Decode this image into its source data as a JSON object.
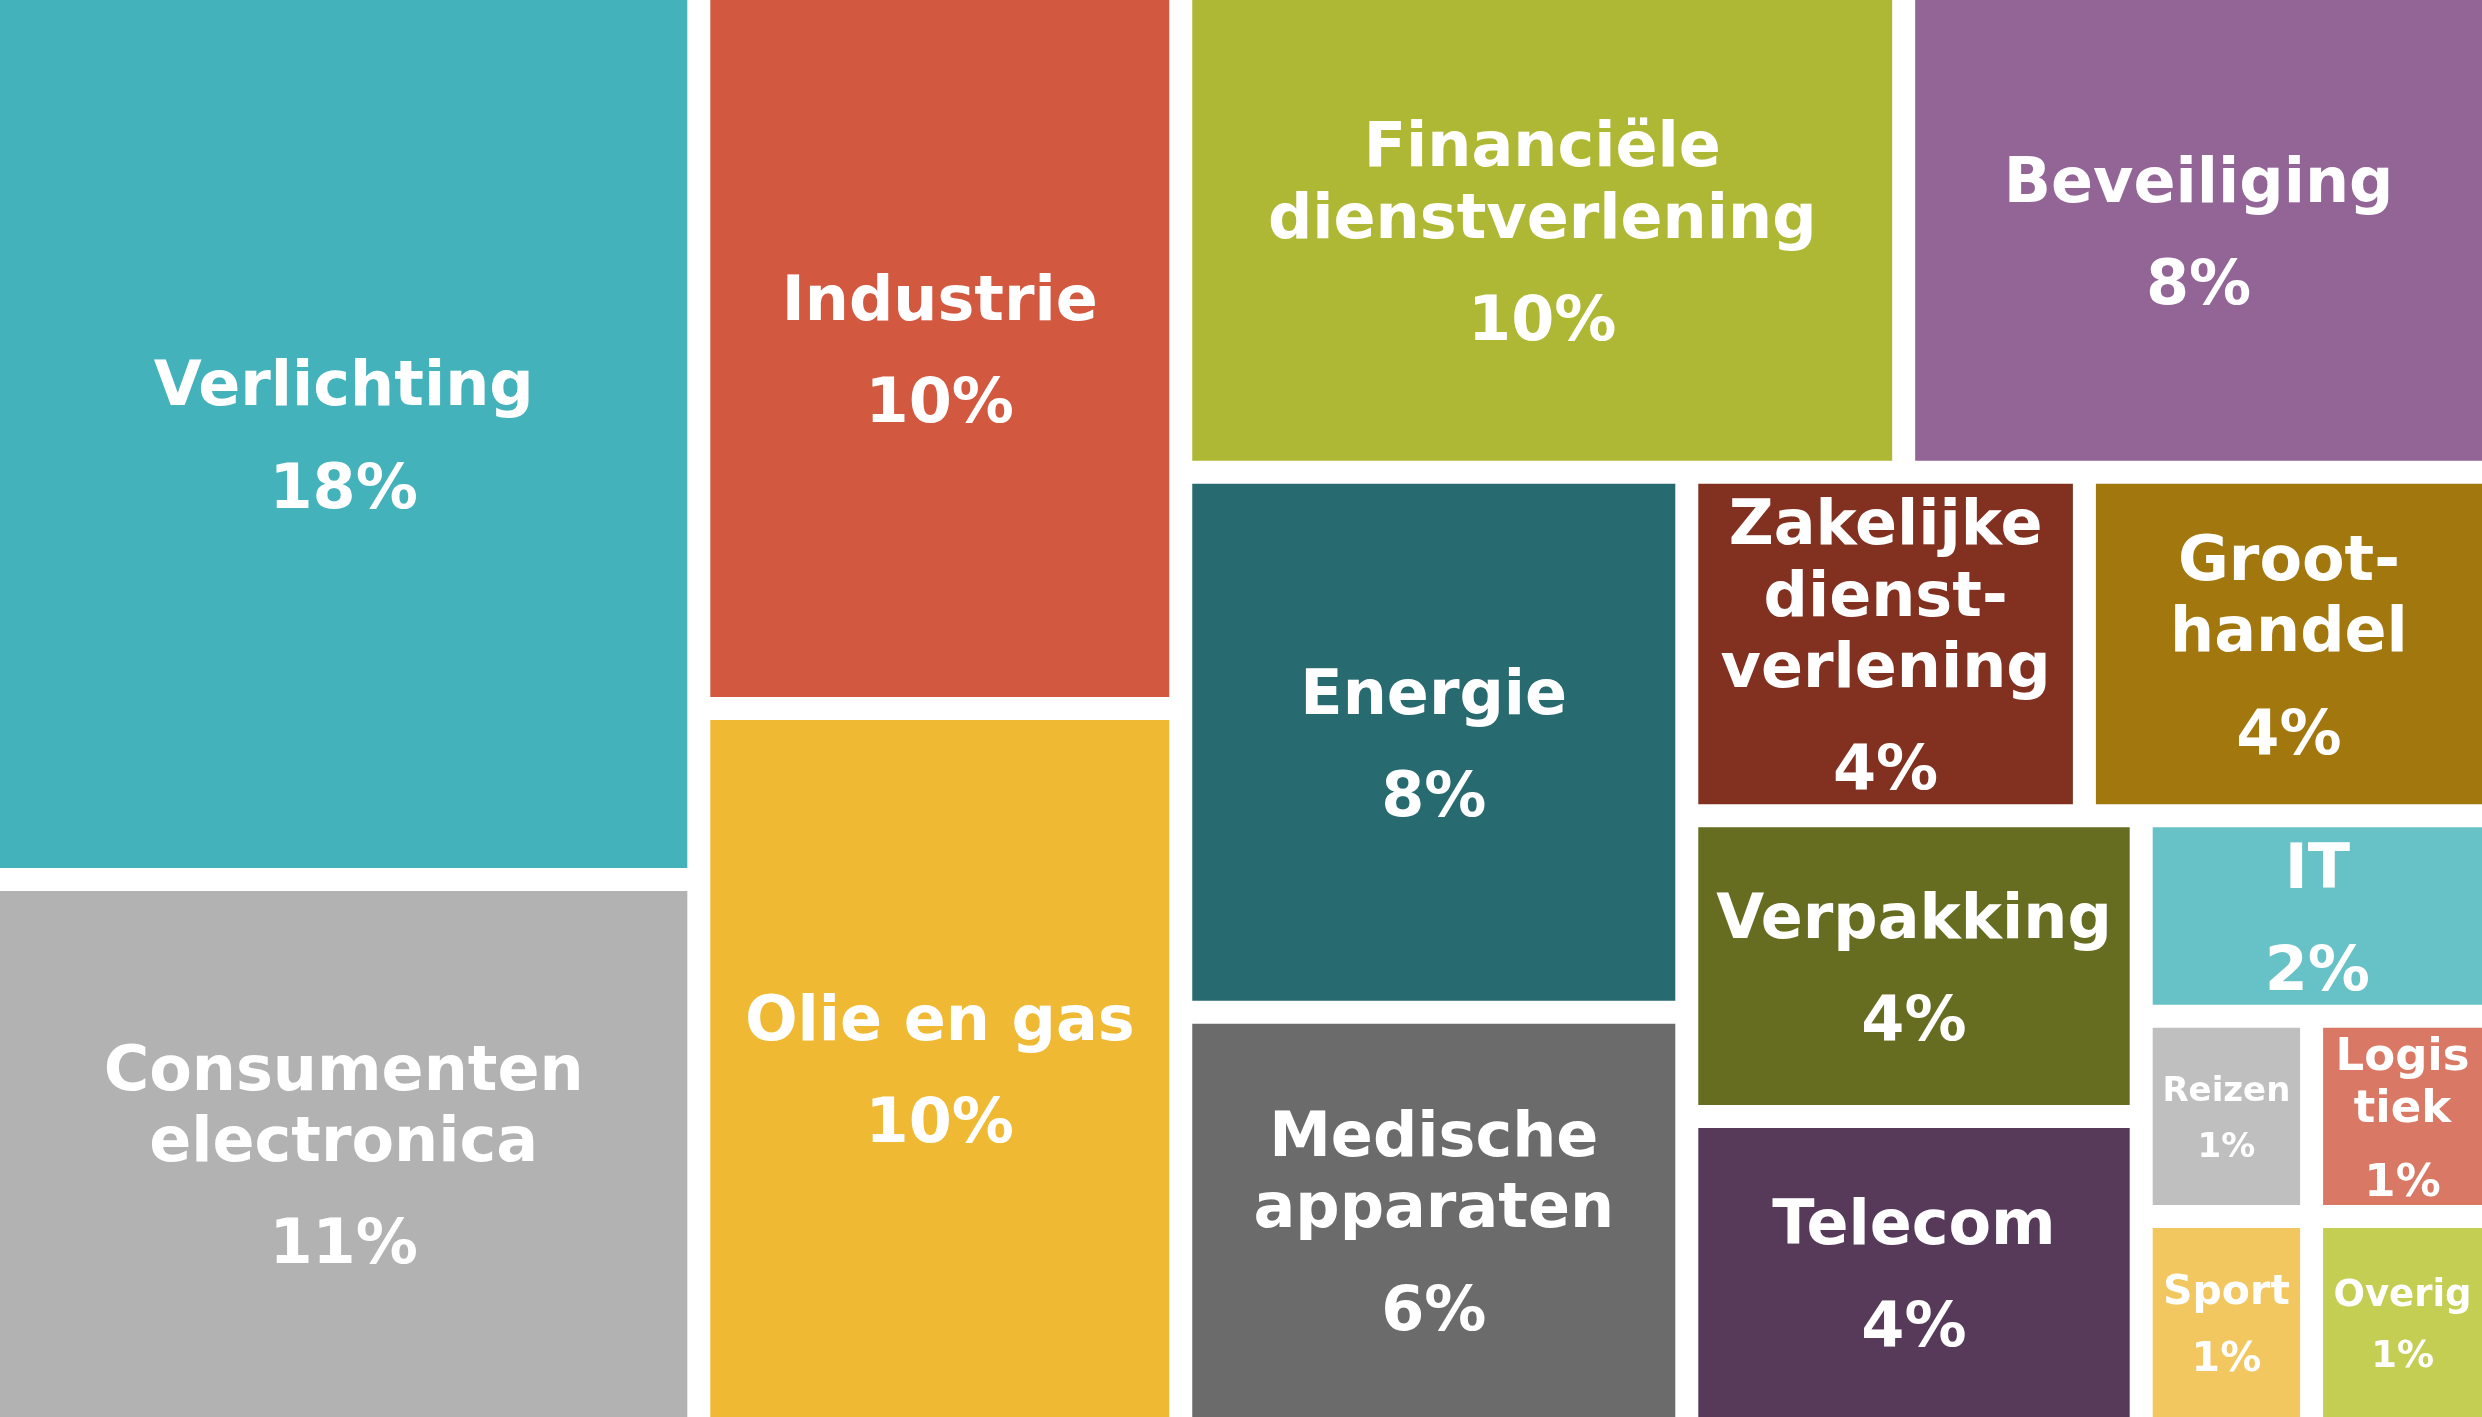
{
  "chart_data": {
    "type": "other",
    "categories": [
      "Verlichting",
      "Consumenten electronica",
      "Industrie",
      "Olie en gas",
      "Financiële dienstverlening",
      "Beveiliging",
      "Energie",
      "Medische apparaten",
      "Zakelijke dienst-verlening",
      "Groot-handel",
      "Verpakking",
      "Telecom",
      "IT",
      "Reizen",
      "Logistiek",
      "Sport",
      "Overig"
    ],
    "values": [
      18,
      11,
      10,
      10,
      10,
      8,
      8,
      6,
      4,
      4,
      4,
      4,
      2,
      1,
      1,
      1,
      1
    ],
    "value_labels": [
      "18%",
      "11%",
      "10%",
      "10%",
      "10%",
      "8%",
      "8%",
      "6%",
      "4%",
      "4%",
      "4%",
      "4%",
      "2%",
      "1%",
      "1%",
      "1%",
      "1%"
    ],
    "colors": [
      "#43b2bb",
      "#b2b2b2",
      "#d2583f",
      "#efb934",
      "#afb834",
      "#926596",
      "#276b70",
      "#6b6b6b",
      "#823020",
      "#a2780e",
      "#676d20",
      "#573a5a",
      "#67c2c7",
      "#bfbfbf",
      "#d97864",
      "#f2c75f",
      "#c4ce52"
    ]
  }
}
